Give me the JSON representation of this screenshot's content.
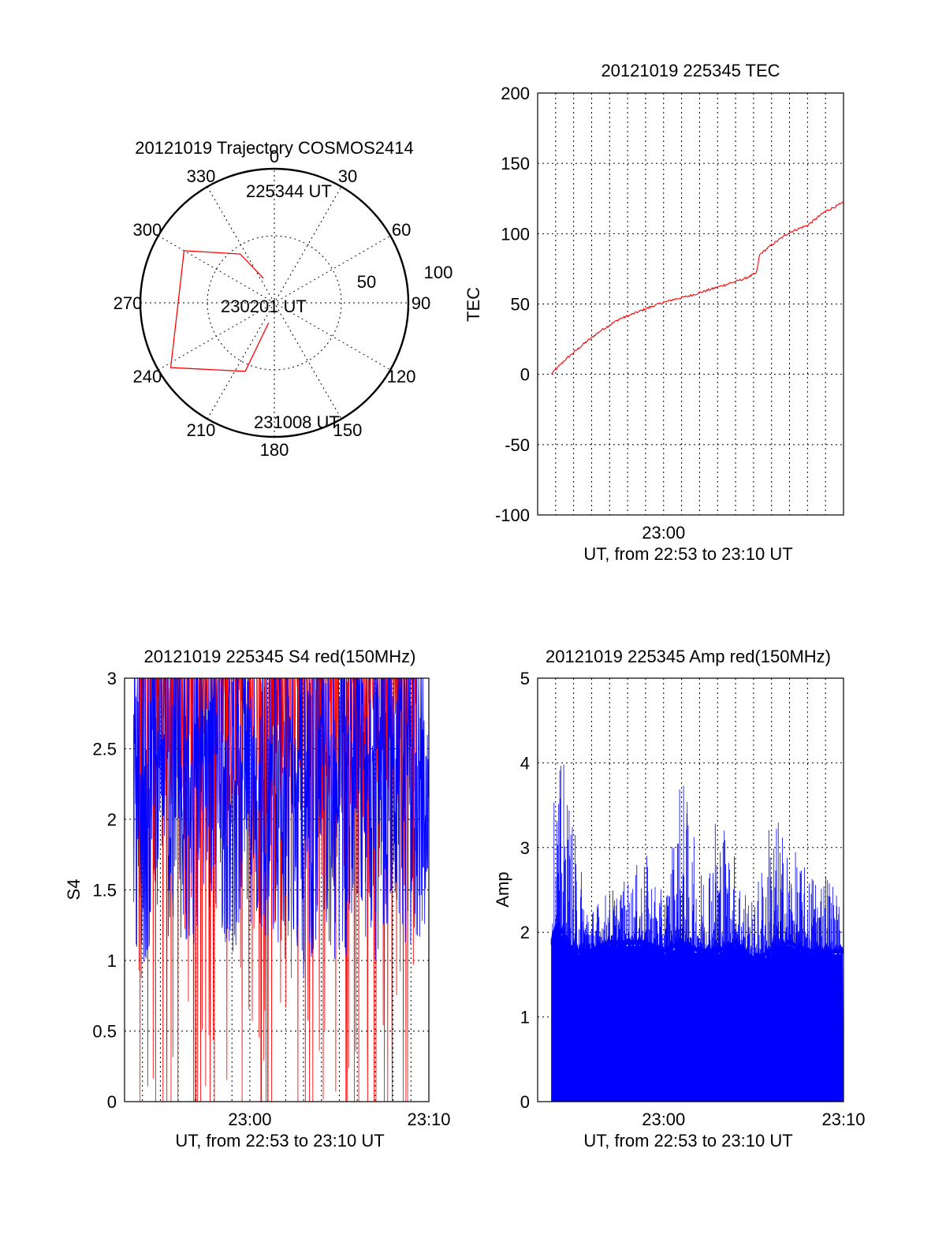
{
  "chart_data": [
    {
      "type": "polar",
      "title": "20121019 Trajectory COSMOS2414",
      "azimuth_labels": [
        "0",
        "30",
        "60",
        "90",
        "120",
        "150",
        "180",
        "210",
        "240",
        "270",
        "300",
        "330"
      ],
      "radial_labels": [
        "50",
        "100"
      ],
      "track": {
        "color": "#ff0000",
        "points": [
          [
            336,
            72
          ],
          [
            325,
            50
          ],
          [
            300,
            20
          ],
          [
            238,
            8
          ],
          [
            203,
            40
          ],
          [
            196,
            76
          ]
        ]
      },
      "annotations": [
        "225344 UT",
        "230201 UT",
        "231008 UT"
      ]
    },
    {
      "type": "line",
      "title": "20121019 225345 TEC",
      "xlabel": "UT, from 22:53 to 23:10 UT",
      "ylabel": "TEC",
      "x_tick_labels": [
        "23:00"
      ],
      "yticks": [
        "-100",
        "-50",
        "0",
        "50",
        "100",
        "150",
        "200"
      ],
      "ylim": [
        -100,
        200
      ],
      "xlim": [
        "22:53",
        "23:10"
      ],
      "series": [
        {
          "color": "#ff0000",
          "x": [
            "22:53:45",
            "22:54:30",
            "22:55:30",
            "22:56:30",
            "22:57:30",
            "22:58:30",
            "22:59:30",
            "23:00:30",
            "23:01:30",
            "23:02:30",
            "23:03:30",
            "23:04:30",
            "23:05:10",
            "23:05:20",
            "23:06:00",
            "23:07:00",
            "23:08:00",
            "23:09:00",
            "23:10:00"
          ],
          "values": [
            0,
            10,
            21,
            31,
            39,
            44,
            49,
            53,
            56,
            60,
            64,
            68,
            72,
            85,
            92,
            101,
            106,
            116,
            122
          ]
        }
      ],
      "grid": true
    },
    {
      "type": "line",
      "title": "20121019 225345 S4 red(150MHz)",
      "xlabel": "UT, from 22:53 to 23:10 UT",
      "ylabel": "S4",
      "x_tick_labels": [
        "23:00",
        "23:10"
      ],
      "yticks": [
        "0",
        "0.5",
        "1",
        "1.5",
        "2",
        "2.5",
        "3"
      ],
      "ylim": [
        0,
        3
      ],
      "xlim": [
        "22:53",
        "23:10"
      ],
      "series": [
        {
          "color": "#ff0000",
          "x": [
            "22:53:45",
            "22:54:00",
            "22:55:00",
            "22:55:45",
            "22:56:30",
            "22:58:00",
            "22:59:30",
            "23:01:00",
            "23:02:30",
            "23:04:00",
            "23:04:50",
            "23:05:30",
            "23:06:30",
            "23:07:40",
            "23:08:40",
            "23:09:20"
          ],
          "values": [
            0,
            3,
            0,
            3,
            0,
            2.6,
            2.1,
            2.8,
            2.4,
            2.9,
            0.55,
            0,
            0.3,
            0,
            0,
            2.2
          ]
        },
        {
          "color": "#0000ff",
          "x": [
            "22:53:30",
            "22:54:00",
            "22:55:00",
            "22:56:00",
            "22:57:00",
            "22:58:00",
            "22:59:00",
            "23:00:00",
            "23:01:00",
            "23:02:00",
            "23:03:00",
            "23:04:00",
            "23:05:00",
            "23:06:00",
            "23:07:00",
            "23:08:00",
            "23:09:00",
            "23:10:00"
          ],
          "values": [
            2.3,
            1.1,
            2.8,
            1.2,
            1.9,
            2.9,
            1.4,
            2.6,
            1.5,
            2.2,
            0.7,
            2.7,
            1.0,
            2.5,
            1.3,
            2.8,
            1.6,
            2.4
          ]
        }
      ],
      "grid": true
    },
    {
      "type": "bar",
      "title": "20121019 225345 Amp red(150MHz)",
      "xlabel": "UT, from 22:53 to 23:10 UT",
      "ylabel": "Amp",
      "x_tick_labels": [
        "23:00",
        "23:10"
      ],
      "yticks": [
        "0",
        "1",
        "2",
        "3",
        "4",
        "5"
      ],
      "ylim": [
        0,
        5
      ],
      "xlim": [
        "22:53",
        "23:10"
      ],
      "series": [
        {
          "color": "#0000ff",
          "x": [
            "22:53:45",
            "22:54:00",
            "22:54:30",
            "22:55:00",
            "22:56:00",
            "22:57:00",
            "22:58:00",
            "22:59:00",
            "23:00:00",
            "23:01:00",
            "23:02:00",
            "23:03:00",
            "23:04:00",
            "23:05:00",
            "23:06:00",
            "23:07:00",
            "23:08:00",
            "23:09:00",
            "23:10:00"
          ],
          "values": [
            2.9,
            3.8,
            4.0,
            3.2,
            2.3,
            2.5,
            2.6,
            2.9,
            2.4,
            3.9,
            2.7,
            3.6,
            2.9,
            2.3,
            3.5,
            3.0,
            2.7,
            2.9,
            2.2
          ],
          "floor_values": [
            1.9,
            2.1,
            2.0,
            1.8,
            1.8,
            1.9,
            1.9,
            1.9,
            1.8,
            1.9,
            1.8,
            1.8,
            1.9,
            1.7,
            1.8,
            1.9,
            1.8,
            1.8,
            1.8
          ]
        }
      ],
      "grid": true
    }
  ]
}
